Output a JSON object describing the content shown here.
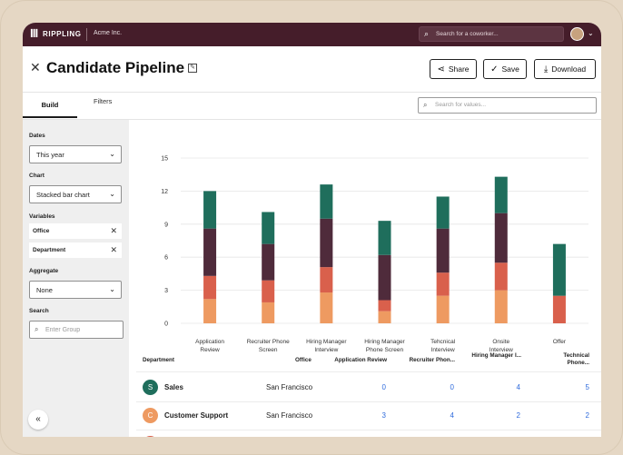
{
  "topbar": {
    "logo_mark": "ꟾꟾꟾ",
    "logo_text": "RIPPLING",
    "company": "Acme Inc.",
    "search_placeholder": "Search for a coworker..."
  },
  "header": {
    "title": "Candidate Pipeline",
    "share": "Share",
    "save": "Save",
    "download": "Download"
  },
  "tabs": {
    "build": "Build",
    "filters": "Filters"
  },
  "values_search_placeholder": "Search for values...",
  "sidebar": {
    "dates_label": "Dates",
    "dates_value": "This year",
    "chart_label": "Chart",
    "chart_value": "Stacked bar chart",
    "variables_label": "Variables",
    "variables": [
      "Office",
      "Department"
    ],
    "aggregate_label": "Aggregate",
    "aggregate_value": "None",
    "search_label": "Search",
    "search_placeholder": "Enter Group"
  },
  "colors": {
    "green": "#1f6e5c",
    "maroon": "#4f2b3b",
    "red": "#d9604c",
    "orange": "#ee9a61",
    "topbar": "#451d2a",
    "link": "#2f6bdc"
  },
  "chart_data": {
    "type": "bar",
    "stacked": true,
    "categories": [
      "Application Review",
      "Recruiter Phone Screen",
      "Hiring Manager Interview",
      "Hiring Manager Phone Screen",
      "Tehcnical Interview",
      "Onsite Interview",
      "Offer"
    ],
    "series": [
      {
        "color": "#ee9a61",
        "values": [
          2.2,
          1.9,
          2.8,
          1.1,
          2.5,
          3.0,
          0.0
        ]
      },
      {
        "color": "#d9604c",
        "values": [
          2.1,
          2.0,
          2.3,
          1.0,
          2.1,
          2.5,
          2.5
        ]
      },
      {
        "color": "#4f2b3b",
        "values": [
          4.3,
          3.3,
          4.4,
          4.1,
          4.0,
          4.5,
          0.0
        ]
      },
      {
        "color": "#1f6e5c",
        "values": [
          3.4,
          2.9,
          3.1,
          3.1,
          2.9,
          3.3,
          4.7
        ]
      }
    ],
    "ylim": [
      0,
      15
    ],
    "yticks": [
      0,
      3,
      6,
      9,
      12,
      15
    ],
    "grid": true
  },
  "table": {
    "headers": [
      "Department",
      "Office",
      "Application Review",
      "Recruiter Phon...",
      "Hiring Manager I...",
      "Technical Phone..."
    ],
    "rows": [
      {
        "initial": "S",
        "color": "#1f6e5c",
        "department": "Sales",
        "office": "San Francisco",
        "values": [
          "0",
          "0",
          "4",
          "5"
        ]
      },
      {
        "initial": "C",
        "color": "#ee9a61",
        "department": "Customer Support",
        "office": "San Francisco",
        "values": [
          "3",
          "4",
          "2",
          "2"
        ]
      },
      {
        "initial": "",
        "color": "#d9604c",
        "department": "",
        "office": "",
        "values": [
          "",
          "",
          "",
          ""
        ]
      }
    ]
  }
}
